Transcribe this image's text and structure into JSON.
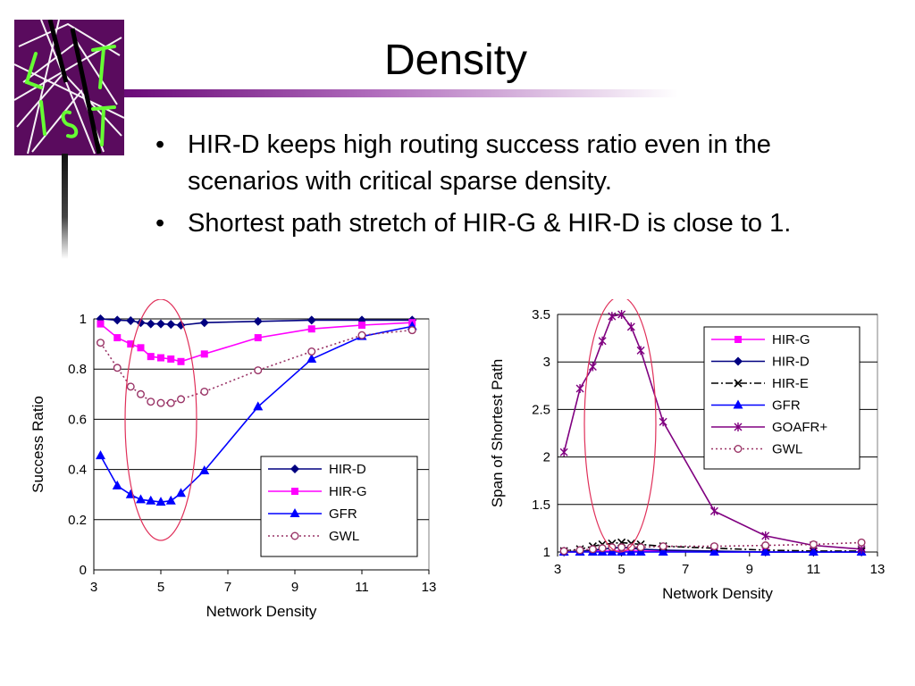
{
  "slide": {
    "title": "Density",
    "bullets": [
      "HIR-D keeps high routing success ratio even in the scenarios with critical sparse density.",
      "Shortest path stretch of HIR-G & HIR-D is close to 1."
    ],
    "bullet_glyph": "•",
    "logo_icon": "ist-logo-icon",
    "accent_color": "#6a0a78"
  },
  "chart_data": [
    {
      "type": "line",
      "xlabel": "Network Density",
      "ylabel": "Success Ratio",
      "xlim": [
        3,
        13
      ],
      "ylim": [
        0,
        1
      ],
      "xticks": [
        "3",
        "5",
        "7",
        "9",
        "11",
        "13"
      ],
      "yticks": [
        "0",
        "0.2",
        "0.4",
        "0.6",
        "0.8",
        "1"
      ],
      "grid": true,
      "legend_position": "lower-right",
      "highlight": "ellipse around density 5",
      "series": [
        {
          "name": "HIR-D",
          "color": "#000080",
          "marker": "diamond",
          "dash": "solid",
          "x": [
            3.2,
            3.7,
            4.1,
            4.4,
            4.7,
            5.0,
            5.3,
            5.6,
            6.3,
            7.9,
            9.5,
            11.0,
            12.5
          ],
          "y": [
            1.0,
            0.995,
            0.993,
            0.985,
            0.98,
            0.98,
            0.978,
            0.975,
            0.985,
            0.99,
            0.995,
            0.995,
            0.995
          ]
        },
        {
          "name": "HIR-G",
          "color": "#ff00ff",
          "marker": "square",
          "dash": "solid",
          "x": [
            3.2,
            3.7,
            4.1,
            4.4,
            4.7,
            5.0,
            5.3,
            5.6,
            6.3,
            7.9,
            9.5,
            11.0,
            12.5
          ],
          "y": [
            0.98,
            0.925,
            0.9,
            0.885,
            0.85,
            0.845,
            0.84,
            0.83,
            0.86,
            0.925,
            0.96,
            0.975,
            0.985
          ]
        },
        {
          "name": "GFR",
          "color": "#0000ff",
          "marker": "triangle",
          "dash": "solid",
          "x": [
            3.2,
            3.7,
            4.1,
            4.4,
            4.7,
            5.0,
            5.3,
            5.6,
            6.3,
            7.9,
            9.5,
            11.0,
            12.5
          ],
          "y": [
            0.455,
            0.335,
            0.3,
            0.28,
            0.275,
            0.27,
            0.275,
            0.305,
            0.395,
            0.65,
            0.84,
            0.93,
            0.97
          ]
        },
        {
          "name": "GWL",
          "color": "#993366",
          "marker": "circle",
          "dash": "dotted",
          "x": [
            3.2,
            3.7,
            4.1,
            4.4,
            4.7,
            5.0,
            5.3,
            5.6,
            6.3,
            7.9,
            9.5,
            11.0,
            12.5
          ],
          "y": [
            0.905,
            0.805,
            0.73,
            0.7,
            0.67,
            0.665,
            0.665,
            0.68,
            0.71,
            0.795,
            0.87,
            0.935,
            0.955
          ]
        }
      ]
    },
    {
      "type": "line",
      "xlabel": "Network Density",
      "ylabel": "Span of Shortest Path",
      "xlim": [
        3,
        13
      ],
      "ylim": [
        1,
        3.5
      ],
      "xticks": [
        "3",
        "5",
        "7",
        "9",
        "11",
        "13"
      ],
      "yticks": [
        "1",
        "1.5",
        "2",
        "2.5",
        "3",
        "3.5"
      ],
      "grid": true,
      "legend_position": "upper-right",
      "highlight": "ellipse around density 5",
      "series": [
        {
          "name": "HIR-G",
          "color": "#ff00ff",
          "marker": "square",
          "dash": "solid",
          "x": [
            3.2,
            3.7,
            4.1,
            4.4,
            4.7,
            5.0,
            5.3,
            5.6,
            6.3,
            7.9,
            9.5,
            11.0,
            12.5
          ],
          "y": [
            1.0,
            1.0,
            1.01,
            1.01,
            1.01,
            1.01,
            1.01,
            1.01,
            1.01,
            1.0,
            1.0,
            1.0,
            1.0
          ]
        },
        {
          "name": "HIR-D",
          "color": "#000080",
          "marker": "diamond",
          "dash": "solid",
          "x": [
            3.2,
            3.7,
            4.1,
            4.4,
            4.7,
            5.0,
            5.3,
            5.6,
            6.3,
            7.9,
            9.5,
            11.0,
            12.5
          ],
          "y": [
            1.0,
            1.01,
            1.02,
            1.03,
            1.04,
            1.05,
            1.04,
            1.03,
            1.02,
            1.01,
            1.0,
            1.0,
            1.0
          ]
        },
        {
          "name": "HIR-E",
          "color": "#000000",
          "marker": "x",
          "dash": "dashdot",
          "x": [
            3.2,
            3.7,
            4.1,
            4.4,
            4.7,
            5.0,
            5.3,
            5.6,
            6.3,
            7.9,
            9.5,
            11.0,
            12.5
          ],
          "y": [
            1.01,
            1.03,
            1.06,
            1.08,
            1.09,
            1.1,
            1.09,
            1.08,
            1.06,
            1.04,
            1.02,
            1.01,
            1.01
          ]
        },
        {
          "name": "GFR",
          "color": "#0000ff",
          "marker": "triangle",
          "dash": "solid",
          "x": [
            3.2,
            3.7,
            4.1,
            4.4,
            4.7,
            5.0,
            5.3,
            5.6,
            6.3,
            7.9,
            9.5,
            11.0,
            12.5
          ],
          "y": [
            1.0,
            1.0,
            1.0,
            1.0,
            1.0,
            1.0,
            1.0,
            1.0,
            1.0,
            1.0,
            1.0,
            1.0,
            1.0
          ]
        },
        {
          "name": "GOAFR+",
          "color": "#800080",
          "marker": "star",
          "dash": "solid",
          "x": [
            3.2,
            3.7,
            4.1,
            4.4,
            4.7,
            5.0,
            5.3,
            5.6,
            6.3,
            7.9,
            9.5,
            11.0,
            12.5
          ],
          "y": [
            2.05,
            2.72,
            2.95,
            3.22,
            3.48,
            3.5,
            3.37,
            3.12,
            2.37,
            1.43,
            1.17,
            1.07,
            1.03
          ]
        },
        {
          "name": "GWL",
          "color": "#993366",
          "marker": "circle",
          "dash": "dotted",
          "x": [
            3.2,
            3.7,
            4.1,
            4.4,
            4.7,
            5.0,
            5.3,
            5.6,
            6.3,
            7.9,
            9.5,
            11.0,
            12.5
          ],
          "y": [
            1.01,
            1.02,
            1.03,
            1.04,
            1.05,
            1.05,
            1.05,
            1.05,
            1.06,
            1.06,
            1.07,
            1.08,
            1.1
          ]
        }
      ]
    }
  ]
}
